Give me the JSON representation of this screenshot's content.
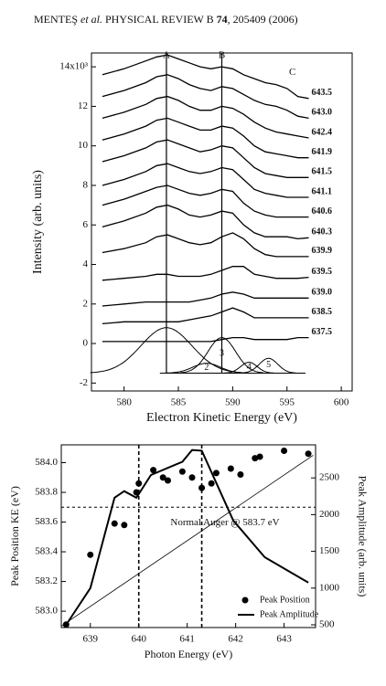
{
  "header": {
    "authors": "MENTEŞ",
    "etal": "et al.",
    "journal": "PHYSICAL REVIEW B",
    "volume": "74",
    "pages": ", 205409 (2006)"
  },
  "chart_data": [
    {
      "type": "line",
      "xlabel": "Electron Kinetic Energy (eV)",
      "ylabel": "Intensity (arb. units)",
      "xlim": [
        577,
        601
      ],
      "ylim": [
        -2.4,
        14.7
      ],
      "xticks": [
        580,
        585,
        590,
        595,
        600
      ],
      "yticks": [
        -2,
        0,
        2,
        4,
        6,
        8,
        10,
        12,
        {
          "value": 14,
          "label": "14x10³"
        }
      ],
      "x": [
        578,
        580,
        582,
        583,
        584,
        585,
        586,
        587,
        588,
        589,
        590,
        591,
        592,
        593,
        594,
        595,
        596,
        597
      ],
      "series": [
        {
          "name": "643.5",
          "color": "#000",
          "values": [
            13.6,
            13.9,
            14.3,
            14.5,
            14.6,
            14.4,
            14.2,
            14.0,
            13.9,
            14.0,
            13.9,
            13.6,
            13.4,
            13.2,
            13.1,
            12.9,
            12.5,
            12.4
          ]
        },
        {
          "name": "643.0",
          "color": "#000",
          "values": [
            12.5,
            12.8,
            13.2,
            13.5,
            13.6,
            13.4,
            13.1,
            12.9,
            12.8,
            13.0,
            12.9,
            12.6,
            12.3,
            12.1,
            12.0,
            11.8,
            11.5,
            11.4
          ]
        },
        {
          "name": "642.4",
          "color": "#000",
          "values": [
            11.4,
            11.7,
            12.1,
            12.4,
            12.5,
            12.3,
            12.0,
            11.8,
            11.8,
            12.0,
            11.9,
            11.6,
            11.2,
            10.9,
            10.7,
            10.6,
            10.5,
            10.4
          ]
        },
        {
          "name": "641.9",
          "color": "#000",
          "values": [
            10.3,
            10.6,
            11.0,
            11.3,
            11.4,
            11.2,
            11.0,
            10.8,
            10.8,
            11.0,
            10.9,
            10.5,
            10.0,
            9.7,
            9.6,
            9.5,
            9.4,
            9.4
          ]
        },
        {
          "name": "641.5",
          "color": "#000",
          "values": [
            9.2,
            9.5,
            9.9,
            10.2,
            10.3,
            10.1,
            9.9,
            9.7,
            9.8,
            10.0,
            9.9,
            9.4,
            8.9,
            8.6,
            8.5,
            8.4,
            8.4,
            8.4
          ]
        },
        {
          "name": "641.1",
          "color": "#000",
          "values": [
            8.0,
            8.3,
            8.7,
            9.0,
            9.1,
            8.9,
            8.7,
            8.6,
            8.7,
            8.9,
            8.8,
            8.3,
            7.8,
            7.6,
            7.5,
            7.4,
            7.4,
            7.4
          ]
        },
        {
          "name": "640.6",
          "color": "#000",
          "values": [
            7.0,
            7.3,
            7.7,
            7.9,
            8.0,
            7.8,
            7.6,
            7.5,
            7.6,
            7.8,
            7.7,
            7.1,
            6.7,
            6.5,
            6.4,
            6.4,
            6.4,
            6.4
          ]
        },
        {
          "name": "640.3",
          "color": "#000",
          "values": [
            5.9,
            6.2,
            6.6,
            6.9,
            7.0,
            6.8,
            6.5,
            6.4,
            6.5,
            6.7,
            6.6,
            6.0,
            5.6,
            5.4,
            5.4,
            5.4,
            5.3,
            5.35
          ]
        },
        {
          "name": "639.9",
          "color": "#000",
          "values": [
            4.6,
            4.8,
            5.1,
            5.4,
            5.5,
            5.3,
            5.1,
            5.0,
            5.1,
            5.4,
            5.6,
            5.3,
            4.8,
            4.5,
            4.4,
            4.4,
            4.4,
            4.4
          ]
        },
        {
          "name": "639.5",
          "color": "#000",
          "values": [
            3.2,
            3.3,
            3.4,
            3.5,
            3.5,
            3.4,
            3.4,
            3.4,
            3.5,
            3.7,
            3.9,
            3.9,
            3.5,
            3.4,
            3.3,
            3.3,
            3.3,
            3.35
          ]
        },
        {
          "name": "639.0",
          "color": "#000",
          "values": [
            1.9,
            2.0,
            2.1,
            2.1,
            2.1,
            2.1,
            2.1,
            2.2,
            2.3,
            2.5,
            2.6,
            2.5,
            2.3,
            2.3,
            2.3,
            2.3,
            2.3,
            2.3
          ]
        },
        {
          "name": "638.5",
          "color": "#000",
          "values": [
            1.0,
            1.1,
            1.1,
            1.1,
            1.1,
            1.1,
            1.2,
            1.3,
            1.4,
            1.6,
            1.8,
            1.6,
            1.3,
            1.3,
            1.3,
            1.3,
            1.3,
            1.3
          ]
        },
        {
          "name": "637.5",
          "color": "#000",
          "values": [
            0.1,
            0.1,
            0.1,
            0.1,
            0.1,
            0.1,
            0.1,
            0.1,
            0.1,
            0.2,
            0.3,
            0.3,
            0.2,
            0.2,
            0.2,
            0.2,
            0.3,
            0.3
          ]
        }
      ],
      "vlines": [
        {
          "x": 583.9,
          "label": "A"
        },
        {
          "x": 589,
          "label": "B"
        }
      ],
      "annotation": {
        "text": "C",
        "x": 595.5,
        "y": 13.7
      },
      "baseline": {
        "y": -1.5,
        "x": [
          583.3,
          596.7
        ]
      },
      "peaks": [
        {
          "center": 583.9,
          "height": 2.3,
          "fwhm": 5.5
        },
        {
          "center": 587.6,
          "height": 0.5,
          "fwhm": 3,
          "label": "2"
        },
        {
          "center": 589,
          "height": 1.8,
          "fwhm": 3,
          "label": "3"
        },
        {
          "center": 591.5,
          "height": 0.55,
          "fwhm": 1.8,
          "label": "4"
        },
        {
          "center": 593.3,
          "height": 0.75,
          "fwhm": 2,
          "label": "5"
        }
      ]
    },
    {
      "type": "combo",
      "xlabel": "Photon Energy (eV)",
      "ylabel": "Peak Position KE (eV)",
      "y2label": "Peak Amplitude (arb. units)",
      "xlim": [
        638.4,
        643.65
      ],
      "ylim": [
        582.89,
        584.12
      ],
      "y2lim": [
        463,
        2950
      ],
      "xticks": [
        639,
        640,
        641,
        642,
        643
      ],
      "yticks": [
        {
          "value": 583,
          "label": "583.0"
        },
        583.2,
        583.4,
        583.6,
        583.8,
        {
          "value": 584,
          "label": "584.0"
        }
      ],
      "y2ticks": [
        500,
        1000,
        1500,
        2000,
        2500
      ],
      "series": [
        {
          "name": "Peak Position",
          "type": "scatter",
          "color": "#000",
          "x": [
            638.5,
            639.0,
            639.5,
            639.7,
            639.95,
            640.0,
            640.3,
            640.5,
            640.6,
            640.9,
            641.1,
            641.3,
            641.5,
            641.6,
            641.9,
            642.1,
            642.4,
            642.5,
            643.0,
            643.5
          ],
          "values": [
            582.91,
            583.38,
            583.59,
            583.58,
            583.8,
            583.86,
            583.95,
            583.9,
            583.88,
            583.94,
            583.9,
            583.83,
            583.86,
            583.93,
            583.96,
            583.92,
            584.03,
            584.04,
            584.08,
            584.06
          ]
        },
        {
          "name": "Peak Amplitude",
          "type": "line",
          "axis": "y2",
          "color": "#000",
          "x": [
            638.5,
            639.0,
            639.5,
            639.7,
            639.95,
            640.25,
            640.9,
            641.1,
            641.3,
            641.95,
            642.6,
            643.5
          ],
          "values": [
            500,
            1000,
            2230,
            2320,
            2230,
            2540,
            2720,
            2880,
            2870,
            1920,
            1420,
            1075
          ]
        }
      ],
      "fit": {
        "x": [
          638.4,
          643.6
        ],
        "values": [
          582.9,
          584.05
        ]
      },
      "hline": {
        "y": 583.7,
        "label": "Normal Auger @ 583.7 eV"
      },
      "vlines": [
        640,
        641.3
      ],
      "legend": "lower right"
    }
  ]
}
